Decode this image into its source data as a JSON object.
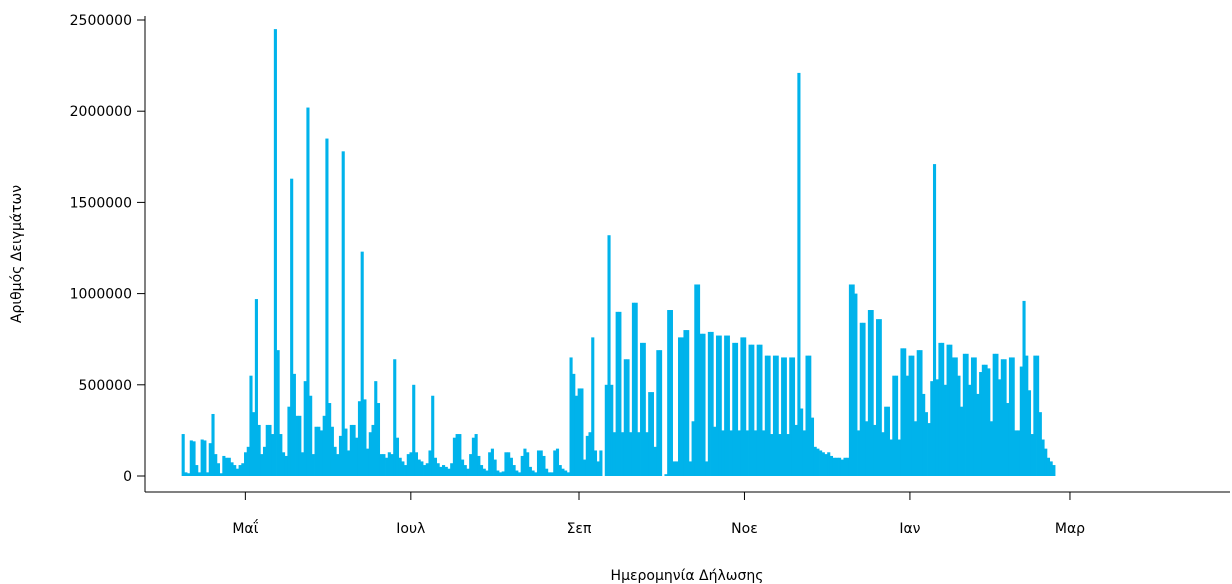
{
  "chart_data": {
    "type": "bar",
    "xlabel": "Ημερομηνία Δήλωσης",
    "ylabel": "Αριθμός Δειγμάτων",
    "ylim": [
      0,
      2500000
    ],
    "yticks": [
      0,
      500000,
      1000000,
      1500000,
      2000000,
      2500000
    ],
    "ytick_labels": [
      "0",
      "500000",
      "1000000",
      "1500000",
      "2000000",
      "2500000"
    ],
    "xlim": [
      "2020-03-25",
      "2021-04-29"
    ],
    "xticks": [
      {
        "date": "2020-05-01",
        "label": "Μαΐ"
      },
      {
        "date": "2020-07-01",
        "label": "Ιουλ"
      },
      {
        "date": "2020-09-01",
        "label": "Σεπ"
      },
      {
        "date": "2020-11-01",
        "label": "Νοε"
      },
      {
        "date": "2021-01-01",
        "label": "Ιαν"
      },
      {
        "date": "2021-03-01",
        "label": "Μαρ"
      }
    ],
    "grid": false,
    "bar_color": "#00b3eb",
    "start_date": "2020-04-08",
    "values": [
      230000,
      20000,
      15000,
      195000,
      190000,
      60000,
      20000,
      200000,
      195000,
      20000,
      180000,
      340000,
      120000,
      70000,
      15000,
      110000,
      100000,
      100000,
      75000,
      60000,
      40000,
      60000,
      70000,
      130000,
      160000,
      550000,
      350000,
      970000,
      280000,
      120000,
      160000,
      280000,
      280000,
      230000,
      2450000,
      690000,
      230000,
      130000,
      110000,
      380000,
      1630000,
      560000,
      330000,
      330000,
      130000,
      520000,
      2020000,
      440000,
      120000,
      270000,
      270000,
      250000,
      330000,
      1850000,
      400000,
      270000,
      160000,
      120000,
      220000,
      1780000,
      260000,
      140000,
      280000,
      280000,
      210000,
      410000,
      1230000,
      420000,
      150000,
      240000,
      280000,
      520000,
      400000,
      120000,
      120000,
      100000,
      130000,
      120000,
      640000,
      210000,
      100000,
      80000,
      60000,
      120000,
      130000,
      500000,
      130000,
      90000,
      80000,
      60000,
      70000,
      140000,
      440000,
      100000,
      70000,
      50000,
      60000,
      50000,
      40000,
      70000,
      210000,
      230000,
      230000,
      90000,
      60000,
      40000,
      120000,
      210000,
      230000,
      110000,
      60000,
      40000,
      30000,
      130000,
      150000,
      90000,
      30000,
      20000,
      25000,
      130000,
      130000,
      100000,
      60000,
      30000,
      20000,
      110000,
      150000,
      130000,
      50000,
      30000,
      20000,
      140000,
      140000,
      110000,
      40000,
      20000,
      20000,
      140000,
      150000,
      60000,
      40000,
      30000,
      20000,
      650000,
      560000,
      440000,
      480000,
      480000,
      90000,
      220000,
      240000,
      760000,
      140000,
      80000,
      140000,
      0,
      500000,
      1320000,
      500000,
      240000,
      900000,
      900000,
      240000,
      640000,
      640000,
      240000,
      950000,
      950000,
      240000,
      730000,
      730000,
      240000,
      460000,
      460000,
      160000,
      690000,
      690000,
      0,
      10000,
      910000,
      910000,
      80000,
      80000,
      760000,
      760000,
      800000,
      800000,
      80000,
      300000,
      1050000,
      1050000,
      780000,
      780000,
      80000,
      790000,
      790000,
      270000,
      770000,
      770000,
      250000,
      770000,
      770000,
      250000,
      730000,
      730000,
      250000,
      760000,
      760000,
      250000,
      720000,
      720000,
      250000,
      720000,
      720000,
      250000,
      660000,
      660000,
      230000,
      660000,
      660000,
      230000,
      650000,
      650000,
      230000,
      650000,
      650000,
      280000,
      2210000,
      370000,
      250000,
      660000,
      660000,
      320000,
      160000,
      150000,
      140000,
      130000,
      120000,
      130000,
      110000,
      100000,
      100000,
      100000,
      90000,
      100000,
      100000,
      1050000,
      1050000,
      1000000,
      250000,
      840000,
      840000,
      300000,
      910000,
      910000,
      280000,
      860000,
      860000,
      240000,
      380000,
      380000,
      200000,
      550000,
      550000,
      200000,
      700000,
      700000,
      550000,
      660000,
      660000,
      300000,
      690000,
      690000,
      450000,
      350000,
      290000,
      520000,
      1710000,
      530000,
      730000,
      730000,
      500000,
      720000,
      720000,
      650000,
      650000,
      550000,
      380000,
      670000,
      670000,
      500000,
      650000,
      650000,
      450000,
      570000,
      610000,
      610000,
      590000,
      300000,
      670000,
      670000,
      530000,
      640000,
      640000,
      400000,
      650000,
      650000,
      250000,
      250000,
      600000,
      960000,
      660000,
      470000,
      230000,
      660000,
      660000,
      350000,
      200000,
      150000,
      100000,
      80000,
      60000
    ]
  }
}
